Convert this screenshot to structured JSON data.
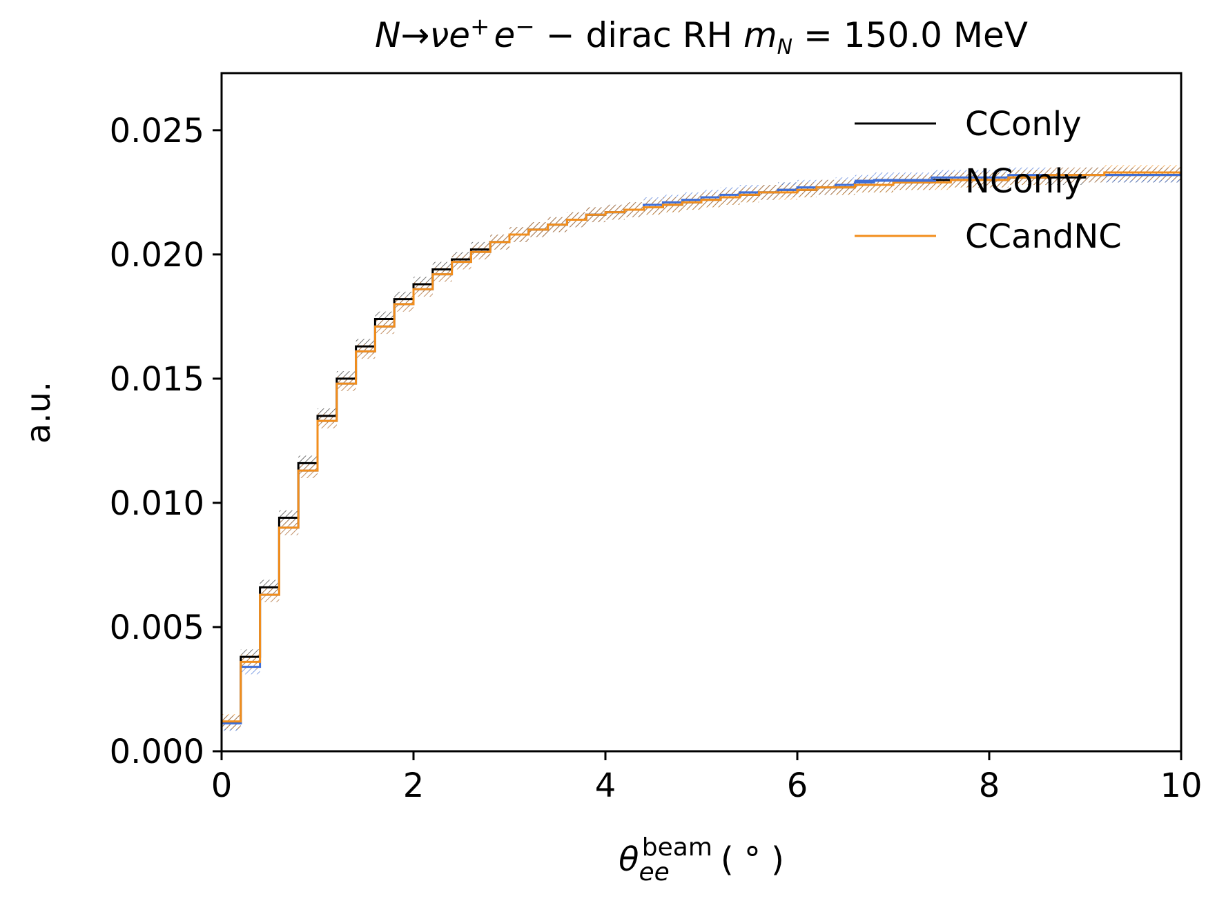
{
  "chart_data": {
    "type": "line",
    "drawstyle": "steps-post",
    "title": "N→νe⁺e⁻ − dirac RH m_N = 150.0 MeV",
    "title_parts": {
      "process": "N→νe",
      "sup_plus": "+",
      "e_minus": "e",
      "sup_minus": "−",
      "middle": " − dirac RH ",
      "mass_sym": "m",
      "mass_sub": "N",
      "mass_value": " = 150.0 MeV"
    },
    "xlabel": "θ_ee^beam (°)",
    "xlabel_parts": {
      "symbol": "θ",
      "sub": "ee",
      "sup": "beam",
      "unit": "( ° )"
    },
    "ylabel": "a.u.",
    "xlim": [
      0,
      10
    ],
    "ylim": [
      0,
      0.0273
    ],
    "x_ticks": [
      "0",
      "2",
      "4",
      "6",
      "8",
      "10"
    ],
    "y_ticks": [
      "0.000",
      "0.005",
      "0.010",
      "0.015",
      "0.020",
      "0.025"
    ],
    "x_tick_values": [
      0,
      2,
      4,
      6,
      8,
      10
    ],
    "y_tick_values": [
      0,
      0.005,
      0.01,
      0.015,
      0.02,
      0.025
    ],
    "bin_edges": [
      0,
      0.2,
      0.4,
      0.6,
      0.8,
      1.0,
      1.2,
      1.4,
      1.6,
      1.8,
      2.0,
      2.2,
      2.4,
      2.6,
      2.8,
      3.0,
      3.2,
      3.4,
      3.6,
      3.8,
      4.0,
      4.2,
      4.4,
      4.6,
      4.8,
      5.0,
      5.2,
      5.4,
      5.6,
      5.8,
      6.0,
      6.2,
      6.4,
      6.6,
      6.8,
      7.0,
      7.2,
      7.4,
      7.6,
      7.8,
      8.0,
      8.2,
      8.4,
      8.6,
      8.8,
      9.0,
      9.2,
      9.4,
      9.6,
      9.8,
      10.0
    ],
    "error_band_halfwidth": 0.0003,
    "legend_position": "top-right",
    "grid": false,
    "series": [
      {
        "name": "CConly",
        "color": "#000000",
        "values": [
          0.00115,
          0.0038,
          0.0066,
          0.0094,
          0.0116,
          0.0135,
          0.015,
          0.0163,
          0.0174,
          0.0182,
          0.0188,
          0.0194,
          0.0198,
          0.0202,
          0.0205,
          0.0208,
          0.021,
          0.0212,
          0.0214,
          0.0216,
          0.0217,
          0.0218,
          0.0219,
          0.022,
          0.0221,
          0.0222,
          0.0223,
          0.0224,
          0.0225,
          0.0226,
          0.0226,
          0.0227,
          0.0227,
          0.0228,
          0.0228,
          0.0229,
          0.0229,
          0.023,
          0.023,
          0.023,
          0.023,
          0.0231,
          0.0231,
          0.0231,
          0.0231,
          0.0232,
          0.0232,
          0.0232,
          0.0232,
          0.0232
        ]
      },
      {
        "name": "NConly",
        "color": "#3f6fd8",
        "values": [
          0.00112,
          0.0034,
          0.0063,
          0.009,
          0.0113,
          0.0133,
          0.0148,
          0.0161,
          0.0171,
          0.018,
          0.0186,
          0.0192,
          0.0197,
          0.0201,
          0.0205,
          0.0208,
          0.021,
          0.0212,
          0.0214,
          0.0216,
          0.0217,
          0.0218,
          0.022,
          0.0221,
          0.0222,
          0.0223,
          0.0224,
          0.0225,
          0.0225,
          0.0226,
          0.0227,
          0.0227,
          0.0228,
          0.0229,
          0.023,
          0.023,
          0.023,
          0.0231,
          0.0231,
          0.0231,
          0.0231,
          0.0232,
          0.0232,
          0.0232,
          0.0232,
          0.0232,
          0.0232,
          0.0232,
          0.0232,
          0.0232
        ]
      },
      {
        "name": "CCandNC",
        "color": "#f28e1c",
        "values": [
          0.0012,
          0.0036,
          0.0063,
          0.009,
          0.0113,
          0.0133,
          0.0148,
          0.0161,
          0.0171,
          0.018,
          0.0186,
          0.0192,
          0.0197,
          0.0201,
          0.0205,
          0.0208,
          0.021,
          0.0212,
          0.0214,
          0.0216,
          0.0217,
          0.0218,
          0.0219,
          0.022,
          0.0221,
          0.0222,
          0.0223,
          0.0224,
          0.0225,
          0.0225,
          0.0226,
          0.0227,
          0.0227,
          0.0228,
          0.0228,
          0.0229,
          0.0229,
          0.0229,
          0.023,
          0.023,
          0.023,
          0.0231,
          0.0231,
          0.0232,
          0.0232,
          0.0232,
          0.0233,
          0.0233,
          0.0233,
          0.0233
        ]
      }
    ]
  }
}
